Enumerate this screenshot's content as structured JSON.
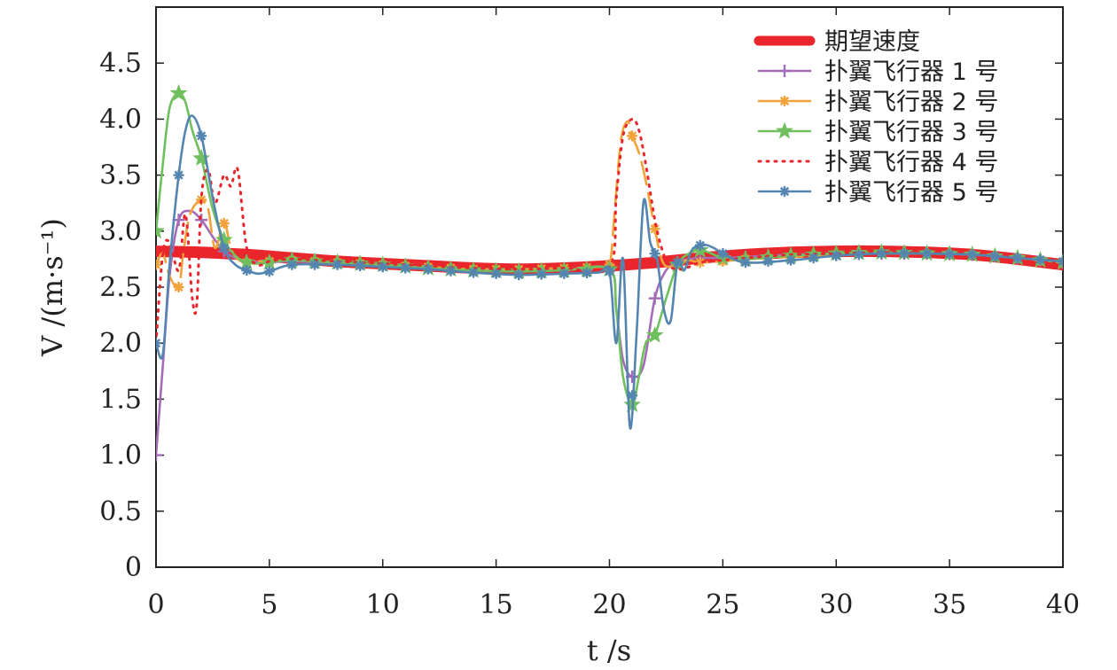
{
  "chart_data": {
    "type": "line",
    "xlabel": "t /s",
    "ylabel": "V /(m·s⁻¹)",
    "xlim": [
      0,
      40
    ],
    "ylim": [
      0,
      5
    ],
    "xticks": [
      0,
      5,
      10,
      15,
      20,
      25,
      30,
      35,
      40
    ],
    "yticks": [
      0,
      0.5,
      1.0,
      1.5,
      2.0,
      2.5,
      3.0,
      3.5,
      4.0,
      4.5
    ],
    "ytick_labels": [
      "0",
      "0.5",
      "1.0",
      "1.5",
      "2.0",
      "2.5",
      "3.0",
      "3.5",
      "4.0",
      "4.5"
    ],
    "grid": false,
    "legend_position": "top-right",
    "series": [
      {
        "name": "期望速度",
        "color": "#e8262b",
        "style": "thick",
        "x": [
          0,
          2,
          4,
          6,
          8,
          10,
          12,
          14,
          16,
          18,
          20,
          22,
          24,
          26,
          28,
          30,
          32,
          34,
          36,
          38,
          40
        ],
        "y": [
          2.82,
          2.81,
          2.79,
          2.76,
          2.73,
          2.71,
          2.69,
          2.67,
          2.66,
          2.67,
          2.69,
          2.72,
          2.76,
          2.79,
          2.81,
          2.82,
          2.82,
          2.81,
          2.79,
          2.75,
          2.7
        ]
      },
      {
        "name": "扑翼飞行器 1 号",
        "color": "#a46cb7",
        "style": "solid",
        "marker": "plus",
        "x": [
          0,
          0.3,
          0.6,
          1,
          1.5,
          2,
          2.5,
          3,
          3.5,
          4,
          4.5,
          5,
          6,
          8,
          10,
          12,
          14,
          16,
          18,
          20,
          20.3,
          20.6,
          21,
          21.5,
          22,
          22.5,
          23,
          23.5,
          24,
          25,
          26,
          28,
          30,
          32,
          34,
          36,
          38,
          40
        ],
        "y": [
          1.0,
          1.8,
          2.6,
          3.1,
          3.18,
          3.1,
          2.95,
          2.82,
          2.76,
          2.73,
          2.72,
          2.72,
          2.73,
          2.71,
          2.69,
          2.67,
          2.65,
          2.64,
          2.65,
          2.66,
          2.3,
          1.85,
          1.7,
          1.8,
          2.4,
          2.65,
          2.72,
          2.75,
          2.76,
          2.76,
          2.77,
          2.79,
          2.8,
          2.8,
          2.8,
          2.79,
          2.76,
          2.72
        ],
        "marker_x": [
          0,
          1,
          2,
          3,
          4,
          5,
          6,
          7,
          8,
          9,
          10,
          11,
          12,
          13,
          14,
          15,
          16,
          17,
          18,
          19,
          20,
          21,
          22,
          23,
          24,
          25,
          26,
          27,
          28,
          29,
          30,
          31,
          32,
          33,
          34,
          35,
          36,
          37,
          38,
          39,
          40
        ]
      },
      {
        "name": "扑翼飞行器 2 号",
        "color": "#f2a23a",
        "style": "dashed",
        "marker": "asterisk",
        "x": [
          0,
          0.3,
          0.6,
          1,
          1.2,
          1.5,
          2,
          2.3,
          2.6,
          3,
          3.3,
          3.6,
          4,
          4.5,
          5,
          6,
          8,
          10,
          12,
          14,
          16,
          18,
          19.5,
          20,
          20.2,
          20.5,
          20.8,
          21,
          21.3,
          21.6,
          22,
          22.3,
          22.6,
          23,
          23.5,
          24,
          25,
          26,
          28,
          30,
          32,
          34,
          36,
          38,
          40
        ],
        "y": [
          2.7,
          2.8,
          2.6,
          2.5,
          2.8,
          3.15,
          3.28,
          3.2,
          2.85,
          3.07,
          2.85,
          2.75,
          2.72,
          2.73,
          2.73,
          2.74,
          2.72,
          2.7,
          2.68,
          2.66,
          2.66,
          2.67,
          2.68,
          2.7,
          3.1,
          3.8,
          3.98,
          3.85,
          3.7,
          3.45,
          3.02,
          2.75,
          2.68,
          2.72,
          2.74,
          2.72,
          2.73,
          2.75,
          2.77,
          2.79,
          2.8,
          2.8,
          2.79,
          2.76,
          2.72
        ],
        "marker_x": [
          0,
          1,
          2,
          3,
          4,
          5,
          6,
          7,
          8,
          9,
          10,
          11,
          12,
          13,
          14,
          15,
          16,
          17,
          18,
          19,
          20,
          21,
          22,
          23,
          24,
          25,
          26,
          27,
          28,
          29,
          30,
          31,
          32,
          33,
          34,
          35,
          36,
          37,
          38,
          39,
          40
        ]
      },
      {
        "name": "扑翼飞行器 3 号",
        "color": "#6fbf5e",
        "style": "solid",
        "marker": "star",
        "x": [
          0,
          0.3,
          0.6,
          1,
          1.3,
          1.6,
          2,
          2.5,
          3,
          3.5,
          4,
          4.5,
          5,
          6,
          8,
          10,
          12,
          14,
          16,
          18,
          20,
          20.3,
          20.6,
          21,
          21.3,
          21.6,
          22,
          22.5,
          23,
          23.5,
          24,
          24.5,
          25,
          26,
          28,
          30,
          32,
          34,
          36,
          38,
          40
        ],
        "y": [
          3.0,
          3.6,
          4.1,
          4.23,
          4.15,
          3.9,
          3.65,
          3.2,
          2.92,
          2.78,
          2.72,
          2.71,
          2.72,
          2.74,
          2.72,
          2.7,
          2.67,
          2.65,
          2.64,
          2.65,
          2.66,
          2.3,
          1.7,
          1.45,
          1.7,
          2.0,
          2.07,
          2.4,
          2.7,
          2.8,
          2.83,
          2.8,
          2.76,
          2.75,
          2.78,
          2.8,
          2.81,
          2.8,
          2.79,
          2.76,
          2.72
        ],
        "marker_x": [
          0,
          1,
          2,
          3,
          4,
          5,
          6,
          7,
          8,
          9,
          10,
          11,
          12,
          13,
          14,
          15,
          16,
          17,
          18,
          19,
          20,
          21,
          22,
          23,
          24,
          25,
          26,
          27,
          28,
          29,
          30,
          31,
          32,
          33,
          34,
          35,
          36,
          37,
          38,
          39,
          40
        ]
      },
      {
        "name": "扑翼飞行器 4 号",
        "color": "#e8262b",
        "style": "dotted",
        "x": [
          0,
          0.3,
          0.6,
          1,
          1.3,
          1.6,
          1.8,
          2,
          2.3,
          2.6,
          3,
          3.3,
          3.6,
          4,
          4.5,
          5,
          6,
          8,
          10,
          12,
          14,
          16,
          18,
          20,
          20.3,
          20.6,
          21,
          21.3,
          21.6,
          22,
          22.3,
          22.6,
          23,
          23.5,
          24,
          25,
          26,
          28,
          30,
          32,
          34,
          36,
          38,
          40
        ],
        "y": [
          2.0,
          2.8,
          2.9,
          2.65,
          3.15,
          2.4,
          2.35,
          3.3,
          3.55,
          3.25,
          3.5,
          3.4,
          3.55,
          2.85,
          2.7,
          2.73,
          2.75,
          2.73,
          2.71,
          2.69,
          2.67,
          2.66,
          2.67,
          2.68,
          3.3,
          3.85,
          4.0,
          3.9,
          3.6,
          3.1,
          2.85,
          2.7,
          2.66,
          2.68,
          2.72,
          2.74,
          2.76,
          2.79,
          2.8,
          2.81,
          2.8,
          2.79,
          2.76,
          2.72
        ]
      },
      {
        "name": "扑翼飞行器 5 号",
        "color": "#5485b0",
        "style": "solid",
        "marker": "asterisk",
        "x": [
          0,
          0.3,
          0.6,
          1,
          1.3,
          1.6,
          2,
          2.5,
          3,
          3.5,
          4,
          4.5,
          5,
          6,
          8,
          10,
          12,
          14,
          16,
          18,
          19.5,
          20,
          20.3,
          20.6,
          20.9,
          21.2,
          21.5,
          21.8,
          22.1,
          22.4,
          22.7,
          23,
          23.3,
          23.6,
          23.9,
          24.2,
          24.6,
          25,
          26,
          28,
          30,
          32,
          34,
          36,
          38,
          40
        ],
        "y": [
          2.0,
          1.9,
          2.7,
          3.5,
          3.9,
          4.03,
          3.85,
          3.3,
          2.85,
          2.7,
          2.65,
          2.62,
          2.64,
          2.7,
          2.7,
          2.68,
          2.66,
          2.63,
          2.61,
          2.62,
          2.63,
          2.64,
          2.0,
          2.75,
          1.25,
          2.1,
          3.26,
          2.9,
          2.75,
          2.3,
          2.2,
          2.72,
          2.65,
          2.82,
          2.87,
          2.88,
          2.85,
          2.8,
          2.72,
          2.74,
          2.78,
          2.8,
          2.8,
          2.79,
          2.76,
          2.73
        ],
        "marker_x": [
          0,
          1,
          2,
          3,
          4,
          5,
          6,
          7,
          8,
          9,
          10,
          11,
          12,
          13,
          14,
          15,
          16,
          17,
          18,
          19,
          20,
          21,
          22,
          23,
          24,
          25,
          26,
          27,
          28,
          29,
          30,
          31,
          32,
          33,
          34,
          35,
          36,
          37,
          38,
          39,
          40
        ]
      }
    ]
  }
}
